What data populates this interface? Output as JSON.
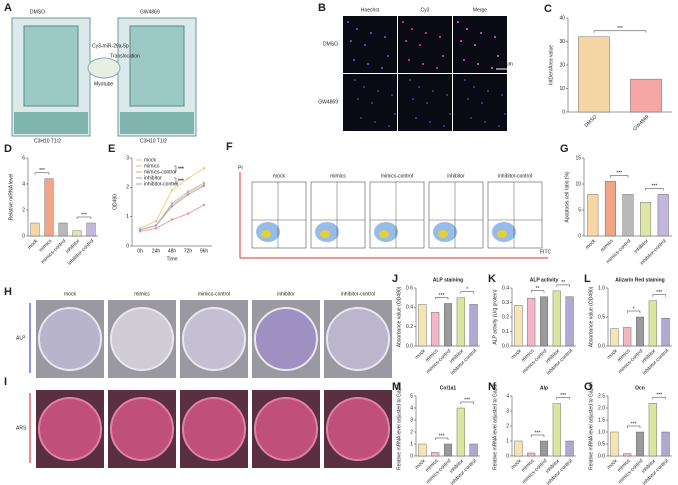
{
  "panel_a": {
    "label": "A",
    "left_tube": "DMSO",
    "right_tube": "GW4869",
    "vesicle": "Cy3-miR-29a-5p",
    "arrow": "Translocation",
    "dish": "Myotube",
    "left_cells": "C3H10 T1/2",
    "right_cells": "C3H10 T1/2"
  },
  "panel_b": {
    "label": "B",
    "columns": [
      "Hoechst",
      "Cy3",
      "Merge"
    ],
    "rows": [
      "DMSO",
      "GW4869"
    ],
    "scale": "100 μm"
  },
  "panel_f": {
    "label": "F",
    "groups": [
      "mock",
      "mimics",
      "mimics-control",
      "inhibitor",
      "inhibitor-control"
    ],
    "y_axis": "PI",
    "x_axis": "FITC"
  },
  "panel_hi": {
    "labels": [
      "H",
      "I"
    ],
    "groups": [
      "mock",
      "mimics",
      "mimics-control",
      "inhibitor",
      "inhibitor-control"
    ],
    "rows": [
      "ALP",
      "ARS"
    ]
  },
  "chart_data": [
    {
      "panel": "C",
      "type": "bar",
      "ylabel": "IntDen/Area value",
      "categories": [
        "DMSO",
        "GW4869"
      ],
      "values": [
        32,
        14
      ],
      "colors": [
        "#f7d6a6",
        "#f4a7a4"
      ],
      "ylim": [
        0,
        40
      ],
      "yticks": [
        0,
        10,
        20,
        30,
        40
      ],
      "significance": [
        {
          "from": "DMSO",
          "to": "GW4869",
          "label": "***"
        }
      ]
    },
    {
      "panel": "D",
      "type": "bar",
      "ylabel": "Relative miRNA level",
      "categories": [
        "mock",
        "mimics",
        "mimics-control",
        "inhibitor",
        "inhibitor-control"
      ],
      "values": [
        1,
        4.4,
        1,
        0.4,
        1
      ],
      "colors": [
        "#f7d6a6",
        "#f2a487",
        "#b9b9b9",
        "#dfe6a8",
        "#c2b8de"
      ],
      "ylim": [
        0,
        6
      ],
      "yticks": [
        0,
        2,
        4,
        6
      ],
      "significance": [
        {
          "from": "mock",
          "to": "mimics",
          "label": "***"
        },
        {
          "from": "inhibitor",
          "to": "inhibitor-control",
          "label": "***"
        }
      ]
    },
    {
      "panel": "E",
      "type": "line",
      "ylabel": "OD490",
      "xlabel": "Time",
      "categories": [
        "0h",
        "24h",
        "48h",
        "72h",
        "96h"
      ],
      "series": [
        {
          "name": "mock",
          "color": "#f4b6b6",
          "values": [
            0.55,
            0.7,
            1.4,
            1.8,
            2.1
          ]
        },
        {
          "name": "mimics",
          "color": "#f3c26b",
          "values": [
            0.6,
            0.85,
            1.9,
            2.3,
            2.65
          ]
        },
        {
          "name": "mimics-control",
          "color": "#b8c27a",
          "values": [
            0.55,
            0.7,
            1.45,
            1.85,
            2.15
          ]
        },
        {
          "name": "inhibitor",
          "color": "#ee8a8a",
          "values": [
            0.5,
            0.6,
            0.9,
            1.1,
            1.4
          ]
        },
        {
          "name": "inhibitor-control",
          "color": "#a898d0",
          "values": [
            0.55,
            0.7,
            1.35,
            1.75,
            2.05
          ]
        }
      ],
      "ylim": [
        0,
        3
      ],
      "yticks": [
        0,
        1,
        2,
        3
      ],
      "significance": [
        {
          "from": "mimics",
          "to": "mimics-control",
          "label": "***"
        },
        {
          "from": "inhibitor",
          "to": "inhibitor-control",
          "label": "***"
        }
      ]
    },
    {
      "panel": "G",
      "type": "bar",
      "ylabel": "Apoptosis cell ratio (%)",
      "categories": [
        "mock",
        "mimics",
        "mimics-control",
        "inhibitor",
        "inhibitor-control"
      ],
      "values": [
        8,
        10.5,
        8,
        6.5,
        8
      ],
      "colors": [
        "#f7d6a6",
        "#f2a487",
        "#b9b9b9",
        "#dfe6a8",
        "#c2b8de"
      ],
      "ylim": [
        0,
        15
      ],
      "yticks": [
        0,
        5,
        10,
        15
      ],
      "significance": [
        {
          "from": "mimics",
          "to": "mimics-control",
          "label": "***"
        },
        {
          "from": "inhibitor",
          "to": "inhibitor-control",
          "label": "***"
        }
      ]
    },
    {
      "panel": "J",
      "type": "bar",
      "title": "ALP staining",
      "ylabel": "Absorbance value (OD490)",
      "categories": [
        "mock",
        "mimics",
        "mimics-control",
        "inhibitor",
        "inhibitor-control"
      ],
      "values": [
        0.43,
        0.35,
        0.44,
        0.5,
        0.43
      ],
      "colors": [
        "#f8e4b0",
        "#f2b8c6",
        "#9a9a9a",
        "#d8e6a0",
        "#b0a8d0"
      ],
      "ylim": [
        0,
        0.6
      ],
      "yticks": [
        {
          "value": 0,
          "label": "0.0"
        },
        0.2,
        0.4,
        0.6
      ],
      "significance": [
        {
          "from": "mimics",
          "to": "mimics-control",
          "label": "***"
        },
        {
          "from": "inhibitor",
          "to": "inhibitor-control",
          "label": "*"
        }
      ]
    },
    {
      "panel": "K",
      "type": "bar",
      "title": "ALP activity",
      "ylabel": "ALP activity (U/g protein)",
      "categories": [
        "mock",
        "mimics",
        "mimics-control",
        "inhibitor",
        "inhibitor-control"
      ],
      "values": [
        0.28,
        0.33,
        0.34,
        0.38,
        0.34
      ],
      "colors": [
        "#f8e4b0",
        "#f2b8c6",
        "#9a9a9a",
        "#d8e6a0",
        "#b0a8d0"
      ],
      "ylim": [
        0,
        0.4
      ],
      "yticks": [
        {
          "value": 0,
          "label": "0.0"
        },
        0.1,
        0.2,
        0.3,
        0.4
      ],
      "significance": [
        {
          "from": "mimics",
          "to": "mimics-control",
          "label": "**"
        },
        {
          "from": "inhibitor",
          "to": "inhibitor-control",
          "label": "**"
        }
      ]
    },
    {
      "panel": "L",
      "type": "bar",
      "title": "Alizarin Red staining",
      "ylabel": "Absorbance value (OD490)",
      "categories": [
        "mock",
        "mimics",
        "mimics-control",
        "inhibitor",
        "inhibitor-control"
      ],
      "values": [
        0.3,
        0.32,
        0.5,
        0.78,
        0.48
      ],
      "colors": [
        "#f8e4b0",
        "#f2b8c6",
        "#9a9a9a",
        "#d8e6a0",
        "#b0a8d0"
      ],
      "ylim": [
        0,
        1
      ],
      "yticks": [
        {
          "value": 0,
          "label": "0.0"
        },
        0.5,
        {
          "value": 1,
          "label": "1.0"
        }
      ],
      "significance": [
        {
          "from": "mimics",
          "to": "mimics-control",
          "label": "*"
        },
        {
          "from": "inhibitor",
          "to": "inhibitor-control",
          "label": "***"
        }
      ]
    },
    {
      "panel": "M",
      "type": "bar",
      "title": "Col1a1",
      "ylabel": "Relative mRNA level adjusted to Gapdh",
      "categories": [
        "mock",
        "mimics",
        "mimics-control",
        "inhibitor",
        "inhibitor-control"
      ],
      "values": [
        1,
        0.3,
        1,
        4,
        1
      ],
      "colors": [
        "#f8e4b0",
        "#f2b8c6",
        "#9a9a9a",
        "#d8e6a0",
        "#b0a8d0"
      ],
      "ylim": [
        0,
        5
      ],
      "yticks": [
        0,
        1,
        2,
        3,
        4,
        5
      ],
      "significance": [
        {
          "from": "mimics",
          "to": "mimics-control",
          "label": "***"
        },
        {
          "from": "inhibitor",
          "to": "inhibitor-control",
          "label": "***"
        }
      ]
    },
    {
      "panel": "N",
      "type": "bar",
      "title": "Alp",
      "ylabel": "Relative mRNA level adjusted to Gapdh",
      "categories": [
        "mock",
        "mimics",
        "mimics-control",
        "inhibitor",
        "inhibitor-control"
      ],
      "values": [
        1,
        0.2,
        1,
        3.5,
        1
      ],
      "colors": [
        "#f8e4b0",
        "#f2b8c6",
        "#9a9a9a",
        "#d8e6a0",
        "#b0a8d0"
      ],
      "ylim": [
        0,
        4
      ],
      "yticks": [
        0,
        1,
        2,
        3,
        4
      ],
      "significance": [
        {
          "from": "mimics",
          "to": "mimics-control",
          "label": "***"
        },
        {
          "from": "inhibitor",
          "to": "inhibitor-control",
          "label": "***"
        }
      ]
    },
    {
      "panel": "O",
      "type": "bar",
      "title": "Ocn",
      "ylabel": "Relative mRNA level adjusted to Gapdh",
      "categories": [
        "mock",
        "mimics",
        "mimics-control",
        "inhibitor",
        "inhibitor-control"
      ],
      "values": [
        1,
        0.1,
        1,
        2.2,
        1
      ],
      "colors": [
        "#f8e4b0",
        "#f2b8c6",
        "#9a9a9a",
        "#d8e6a0",
        "#b0a8d0"
      ],
      "ylim": [
        0,
        2.5
      ],
      "yticks": [
        {
          "value": 0,
          "label": "0.0"
        },
        0.5,
        {
          "value": 1,
          "label": "1.0"
        },
        1.5,
        {
          "value": 2,
          "label": "2.0"
        },
        2.5
      ],
      "significance": [
        {
          "from": "mimics",
          "to": "mimics-control",
          "label": "***"
        },
        {
          "from": "inhibitor",
          "to": "inhibitor-control",
          "label": "***"
        }
      ]
    }
  ]
}
